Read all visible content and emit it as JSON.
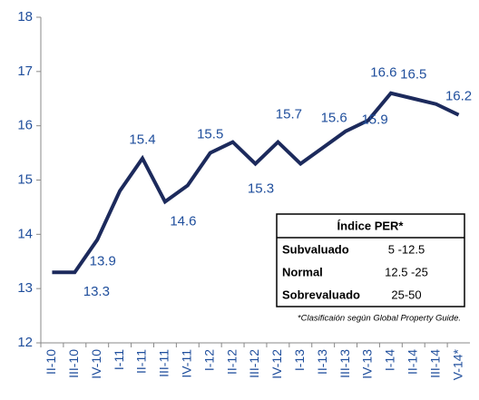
{
  "chart_data": {
    "type": "line",
    "categories": [
      "II-10",
      "III-10",
      "IV-10",
      "I-11",
      "II-11",
      "III-11",
      "IV-11",
      "I-12",
      "II-12",
      "III-12",
      "IV-12",
      "I-13",
      "II-13",
      "III-13",
      "IV-13",
      "I-14",
      "II-14",
      "III-14",
      "V-14*"
    ],
    "series": [
      {
        "color": "#1c2a5c",
        "values": [
          13.3,
          13.3,
          13.9,
          14.8,
          15.4,
          14.6,
          14.9,
          15.5,
          15.7,
          15.3,
          15.7,
          15.3,
          15.6,
          15.9,
          16.1,
          16.6,
          16.5,
          16.4,
          16.2
        ],
        "value_labels": [
          null,
          "13.3",
          "13.9",
          null,
          "15.4",
          "14.6",
          null,
          "15.5",
          null,
          "15.3",
          "15.7",
          null,
          "15.6",
          "15.9",
          null,
          "16.6",
          "16.5",
          null,
          "16.2"
        ]
      }
    ],
    "ylim": [
      12,
      18
    ],
    "yticks": [
      12,
      13,
      14,
      15,
      16,
      17,
      18
    ]
  },
  "table": {
    "title": "Índice PER*",
    "rows": [
      [
        "Subvaluado",
        "5 -12.5"
      ],
      [
        "Normal",
        "12.5 -25"
      ],
      [
        "Sobrevaluado",
        "25-50"
      ]
    ],
    "note": "*Clasificaión según Global Property Guide."
  }
}
